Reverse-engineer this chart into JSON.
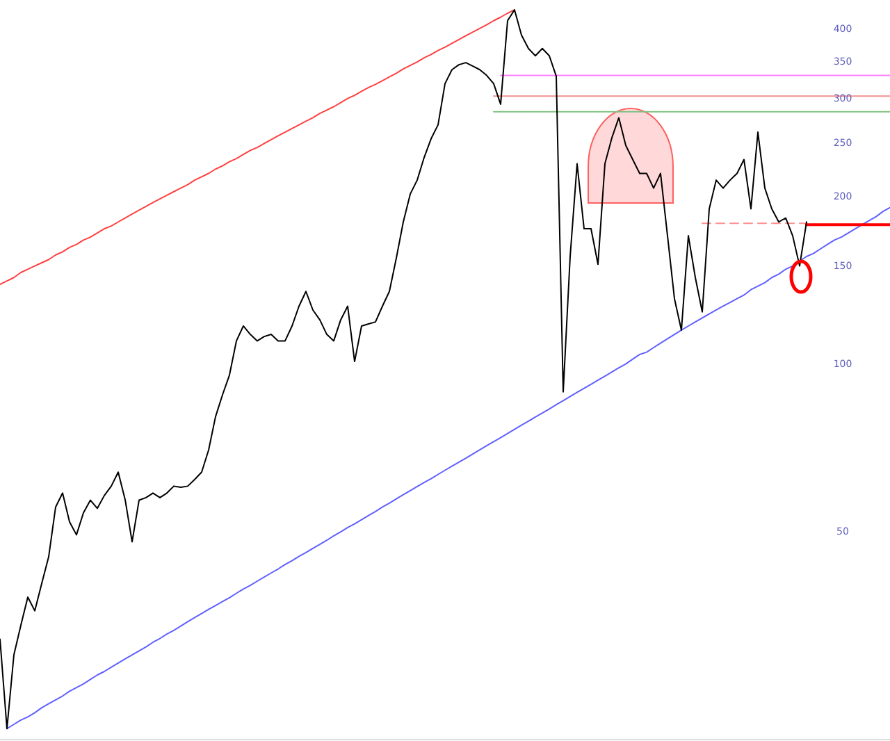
{
  "chart_data": {
    "type": "line",
    "log": "y",
    "tick_labels": "y",
    "ylim": [
      21,
      451
    ],
    "yticks": [
      50,
      100,
      150,
      200,
      250,
      300,
      350,
      400
    ],
    "categories": [
      null,
      null,
      null,
      null,
      null,
      null,
      null,
      null,
      null,
      null,
      null,
      null,
      null,
      null,
      null,
      null,
      null,
      null,
      null,
      null,
      null,
      null,
      null,
      null,
      null,
      null,
      null,
      null,
      null,
      null,
      null,
      null,
      null,
      null,
      null,
      null,
      null,
      null,
      null,
      null,
      null,
      null,
      null,
      null,
      null,
      null,
      null,
      null,
      null,
      null,
      null,
      null,
      null,
      null,
      null,
      null,
      null,
      null,
      null,
      null,
      null,
      null,
      null,
      null,
      null,
      null,
      null,
      null,
      null,
      null,
      null,
      null,
      null,
      null,
      null,
      null,
      null,
      null,
      null,
      null,
      null,
      null,
      null,
      null,
      null,
      null,
      null,
      null,
      null,
      null,
      null,
      null,
      null,
      null,
      null,
      null,
      null,
      null,
      null,
      null,
      null,
      null,
      null,
      null,
      null,
      null,
      null,
      null,
      null,
      null,
      null,
      null,
      null,
      null,
      null,
      null,
      null,
      null,
      null,
      null,
      null,
      null,
      null,
      null,
      null,
      null,
      null,
      null,
      null
    ],
    "series": [
      {
        "color": "#000000",
        "line_style": "solid",
        "values": [
          32.0,
          22.1,
          30.0,
          33.9,
          38.1,
          36,
          40.3,
          45,
          55.3,
          58.6,
          52,
          49.3,
          54,
          56.9,
          55,
          58,
          60.3,
          63.9,
          57,
          47.9,
          56.9,
          57.5,
          58.6,
          57.5,
          58.6,
          60.3,
          60,
          60.3,
          62,
          63.9,
          70,
          80.4,
          88,
          95.5,
          110,
          117,
          113,
          110,
          112,
          113,
          110,
          110,
          117,
          127,
          135,
          125,
          120,
          113,
          110,
          120,
          127,
          101,
          117,
          118,
          119,
          127,
          135,
          155,
          180,
          202,
          214,
          235,
          254,
          269,
          319,
          338,
          345,
          348,
          343,
          338,
          330,
          319,
          293,
          414,
          433,
          390,
          369,
          358,
          369,
          358,
          329,
          89.1,
          156,
          229,
          175,
          175,
          151,
          229,
          255,
          277,
          247,
          233,
          220,
          220,
          207,
          220,
          170,
          131,
          115,
          170,
          143,
          124,
          190,
          214,
          207,
          214,
          220,
          233,
          190,
          261,
          207,
          190,
          180,
          183,
          170,
          150,
          180,
          null,
          null,
          null,
          null,
          null,
          null,
          null,
          null,
          null,
          null,
          null,
          null
        ]
      },
      {
        "type": "line",
        "color": "#ff4040",
        "line_style": "solid",
        "values": [
          139,
          141,
          143,
          146,
          148,
          150,
          152,
          154,
          157,
          159,
          162,
          164,
          167,
          169,
          172,
          175,
          177,
          180,
          183,
          186,
          189,
          192,
          195,
          198,
          201,
          204,
          207,
          210,
          214,
          217,
          220,
          224,
          227,
          231,
          234,
          238,
          242,
          245,
          249,
          253,
          257,
          261,
          265,
          269,
          273,
          277,
          282,
          286,
          290,
          295,
          300,
          304,
          309,
          314,
          318,
          323,
          328,
          333,
          339,
          344,
          349,
          355,
          360,
          366,
          371,
          377,
          383,
          389,
          395,
          401,
          407,
          414,
          420,
          427,
          433,
          null,
          null,
          null,
          null,
          null,
          null,
          null,
          null,
          null,
          null,
          null,
          null,
          null,
          null,
          null,
          null,
          null,
          null,
          null,
          null,
          null,
          null,
          null,
          null,
          null,
          null,
          null,
          null,
          null,
          null,
          null,
          null,
          null,
          null,
          null,
          null,
          null,
          null,
          null,
          null,
          null,
          null,
          null,
          null,
          null,
          null,
          null,
          null,
          null,
          null,
          null,
          null,
          null,
          null
        ]
      },
      {
        "type": "line",
        "color": "#6060ff",
        "line_style": "solid",
        "values": [
          null,
          22.1,
          22.5,
          22.9,
          23.2,
          23.6,
          24.1,
          24.5,
          24.9,
          25.3,
          25.8,
          26.2,
          26.6,
          27.1,
          27.6,
          28.0,
          28.5,
          29.0,
          29.5,
          30.0,
          30.5,
          31.0,
          31.6,
          32.1,
          32.7,
          33.2,
          33.8,
          34.4,
          35.0,
          35.6,
          36.2,
          36.8,
          37.4,
          38.0,
          38.7,
          39.4,
          40.0,
          40.7,
          41.4,
          42.1,
          42.8,
          43.6,
          44.3,
          45.1,
          45.8,
          46.6,
          47.4,
          48.2,
          49.1,
          49.9,
          50.8,
          51.6,
          52.5,
          53.4,
          54.3,
          55.3,
          56.2,
          57.2,
          58.2,
          59.2,
          60.2,
          61.2,
          62.2,
          63.3,
          64.4,
          65.5,
          66.6,
          67.7,
          68.9,
          70.1,
          71.3,
          72.5,
          73.7,
          75.0,
          76.3,
          77.6,
          78.9,
          80.3,
          81.6,
          83.0,
          84.5,
          85.9,
          87.4,
          88.9,
          90.4,
          91.9,
          93.5,
          95.1,
          96.7,
          98.4,
          100,
          102,
          104,
          105,
          107,
          109,
          111,
          113,
          115,
          117,
          119,
          121,
          123,
          125,
          127,
          129,
          131,
          133,
          136,
          138,
          140,
          143,
          145,
          148,
          150,
          153,
          156,
          158,
          161,
          164,
          167,
          169,
          172,
          175,
          178,
          181,
          184,
          188,
          191
        ]
      },
      {
        "type": "line",
        "color": "#ff80ff",
        "line_style": "solid",
        "values": [
          null,
          null,
          null,
          null,
          null,
          null,
          null,
          null,
          null,
          null,
          null,
          null,
          null,
          null,
          null,
          null,
          null,
          null,
          null,
          null,
          null,
          null,
          null,
          null,
          null,
          null,
          null,
          null,
          null,
          null,
          null,
          null,
          null,
          null,
          null,
          null,
          null,
          null,
          null,
          null,
          null,
          null,
          null,
          null,
          null,
          null,
          null,
          null,
          null,
          null,
          null,
          null,
          null,
          null,
          null,
          null,
          null,
          null,
          null,
          null,
          null,
          null,
          null,
          null,
          null,
          null,
          null,
          null,
          null,
          null,
          null,
          null,
          330,
          330,
          330,
          330,
          330,
          330,
          330,
          330,
          330,
          330,
          330,
          330,
          330,
          330,
          330,
          330,
          330,
          330,
          330,
          330,
          330,
          330,
          330,
          330,
          330,
          330,
          330,
          330,
          330,
          330,
          330,
          330,
          330,
          330,
          330,
          330,
          330,
          330,
          330,
          330,
          330,
          330,
          330,
          330,
          330,
          330,
          330,
          330,
          330,
          330,
          330,
          330,
          330,
          330,
          330,
          330,
          330
        ]
      },
      {
        "type": "line",
        "color": "#f09090",
        "line_style": "solid",
        "values": [
          null,
          null,
          null,
          null,
          null,
          null,
          null,
          null,
          null,
          null,
          null,
          null,
          null,
          null,
          null,
          null,
          null,
          null,
          null,
          null,
          null,
          null,
          null,
          null,
          null,
          null,
          null,
          null,
          null,
          null,
          null,
          null,
          null,
          null,
          null,
          null,
          null,
          null,
          null,
          null,
          null,
          null,
          null,
          null,
          null,
          null,
          null,
          null,
          null,
          null,
          null,
          null,
          null,
          null,
          null,
          null,
          null,
          null,
          null,
          null,
          null,
          null,
          null,
          null,
          null,
          null,
          null,
          null,
          null,
          null,
          null,
          303,
          303,
          303,
          303,
          303,
          303,
          303,
          303,
          303,
          303,
          303,
          303,
          303,
          303,
          303,
          303,
          303,
          303,
          303,
          303,
          303,
          303,
          303,
          303,
          303,
          303,
          303,
          303,
          303,
          303,
          303,
          303,
          303,
          303,
          303,
          303,
          303,
          303,
          303,
          303,
          303,
          303,
          303,
          303,
          303,
          303,
          303,
          303,
          303,
          303,
          303,
          303,
          303,
          303,
          303,
          303,
          303,
          303
        ]
      },
      {
        "type": "line",
        "color": "#80c080",
        "line_style": "solid",
        "values": [
          null,
          null,
          null,
          null,
          null,
          null,
          null,
          null,
          null,
          null,
          null,
          null,
          null,
          null,
          null,
          null,
          null,
          null,
          null,
          null,
          null,
          null,
          null,
          null,
          null,
          null,
          null,
          null,
          null,
          null,
          null,
          null,
          null,
          null,
          null,
          null,
          null,
          null,
          null,
          null,
          null,
          null,
          null,
          null,
          null,
          null,
          null,
          null,
          null,
          null,
          null,
          null,
          null,
          null,
          null,
          null,
          null,
          null,
          null,
          null,
          null,
          null,
          null,
          null,
          null,
          null,
          null,
          null,
          null,
          null,
          null,
          284,
          284,
          284,
          284,
          284,
          284,
          284,
          284,
          284,
          284,
          284,
          284,
          284,
          284,
          284,
          284,
          284,
          284,
          284,
          284,
          284,
          284,
          284,
          284,
          284,
          284,
          284,
          284,
          284,
          284,
          284,
          284,
          284,
          284,
          284,
          284,
          284,
          284,
          284,
          284,
          284,
          284,
          284,
          284,
          284,
          284,
          284,
          284,
          284,
          284,
          284,
          284,
          284,
          284,
          284,
          284,
          284,
          284
        ]
      },
      {
        "type": "line",
        "color": "#ff9090",
        "line_style": "dashed",
        "values": [
          null,
          null,
          null,
          null,
          null,
          null,
          null,
          null,
          null,
          null,
          null,
          null,
          null,
          null,
          null,
          null,
          null,
          null,
          null,
          null,
          null,
          null,
          null,
          null,
          null,
          null,
          null,
          null,
          null,
          null,
          null,
          null,
          null,
          null,
          null,
          null,
          null,
          null,
          null,
          null,
          null,
          null,
          null,
          null,
          null,
          null,
          null,
          null,
          null,
          null,
          null,
          null,
          null,
          null,
          null,
          null,
          null,
          null,
          null,
          null,
          null,
          null,
          null,
          null,
          null,
          null,
          null,
          null,
          null,
          null,
          null,
          null,
          null,
          null,
          null,
          null,
          null,
          null,
          null,
          null,
          null,
          null,
          null,
          null,
          null,
          null,
          null,
          null,
          null,
          null,
          null,
          null,
          null,
          null,
          null,
          null,
          null,
          null,
          null,
          null,
          null,
          179,
          179,
          179,
          179,
          179,
          179,
          179,
          179,
          179,
          179,
          179,
          179,
          179,
          179,
          179,
          179,
          null,
          null,
          null,
          null,
          null,
          null,
          null,
          null,
          null,
          null,
          null,
          null
        ]
      },
      {
        "type": "line",
        "color": "#ff0000",
        "line_style": "solid",
        "values": [
          null,
          null,
          null,
          null,
          null,
          null,
          null,
          null,
          null,
          null,
          null,
          null,
          null,
          null,
          null,
          null,
          null,
          null,
          null,
          null,
          null,
          null,
          null,
          null,
          null,
          null,
          null,
          null,
          null,
          null,
          null,
          null,
          null,
          null,
          null,
          null,
          null,
          null,
          null,
          null,
          null,
          null,
          null,
          null,
          null,
          null,
          null,
          null,
          null,
          null,
          null,
          null,
          null,
          null,
          null,
          null,
          null,
          null,
          null,
          null,
          null,
          null,
          null,
          null,
          null,
          null,
          null,
          null,
          null,
          null,
          null,
          null,
          null,
          null,
          null,
          null,
          null,
          null,
          null,
          null,
          null,
          null,
          null,
          null,
          null,
          null,
          null,
          null,
          null,
          null,
          null,
          null,
          null,
          null,
          null,
          null,
          null,
          null,
          null,
          null,
          null,
          null,
          null,
          null,
          null,
          null,
          null,
          null,
          null,
          null,
          null,
          null,
          null,
          null,
          null,
          null,
          178,
          178,
          178,
          178,
          178,
          178,
          178,
          178,
          178,
          178,
          178,
          178,
          178
        ]
      }
    ]
  }
}
